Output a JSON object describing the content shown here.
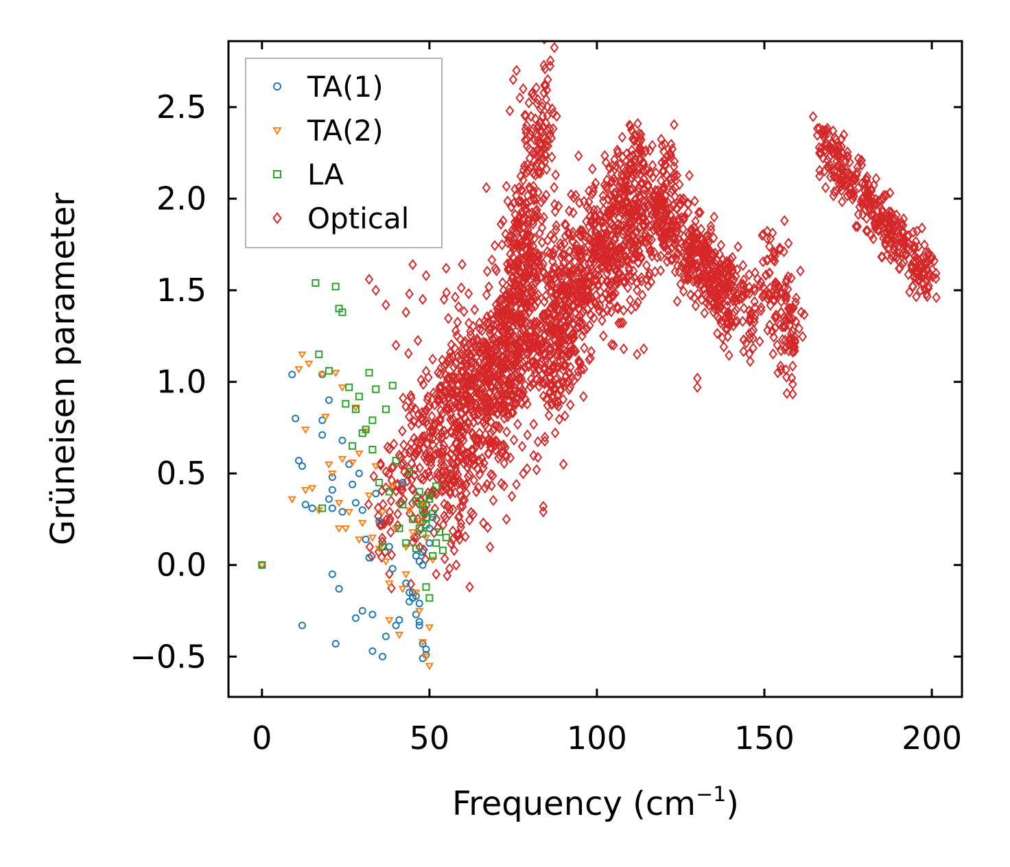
{
  "chart_data": {
    "type": "scatter",
    "title": "",
    "xlabel": "Frequency (cm",
    "xlabel_sup": "−1",
    "xlabel_end": ")",
    "ylabel": "Grüneisen parameter",
    "xlim": [
      -10,
      209
    ],
    "ylim": [
      -0.72,
      2.86
    ],
    "xticks": [
      0,
      50,
      100,
      150,
      200
    ],
    "xtick_labels": [
      "0",
      "50",
      "100",
      "150",
      "200"
    ],
    "yticks": [
      -0.5,
      0.0,
      0.5,
      1.0,
      1.5,
      2.0,
      2.5
    ],
    "ytick_labels": [
      "−0.5",
      "0.0",
      "0.5",
      "1.0",
      "1.5",
      "2.0",
      "2.5"
    ],
    "legend_position": "top-left",
    "series": [
      {
        "name": "TA(1)",
        "marker": "circle",
        "color": "#1f77b4",
        "x": [
          0,
          9,
          10,
          11,
          12,
          13,
          12,
          15,
          18,
          18,
          18,
          20,
          20,
          21,
          21,
          21,
          21,
          22,
          23,
          24,
          24,
          26,
          27,
          28,
          28,
          29,
          30,
          30,
          31,
          32,
          33,
          33,
          34,
          35,
          36,
          37,
          38,
          39,
          40,
          41,
          42,
          43,
          44,
          45,
          46,
          46,
          47,
          47,
          47,
          48,
          48,
          49,
          49,
          50,
          50,
          51,
          46,
          47,
          48,
          48,
          45,
          44
        ],
        "y": [
          0.0,
          1.04,
          0.8,
          0.57,
          0.54,
          0.33,
          -0.33,
          0.31,
          1.04,
          0.79,
          0.71,
          0.9,
          0.36,
          0.48,
          0.41,
          0.31,
          -0.05,
          -0.43,
          -0.13,
          0.29,
          0.68,
          0.55,
          0.44,
          0.34,
          -0.29,
          0.5,
          0.3,
          -0.25,
          0.14,
          0.04,
          -0.27,
          -0.47,
          0.39,
          0.24,
          -0.5,
          -0.39,
          0.1,
          -0.02,
          -0.33,
          -0.3,
          0.45,
          -0.1,
          -0.15,
          -0.18,
          -0.17,
          0.05,
          0.02,
          -0.21,
          -0.33,
          -0.43,
          -0.51,
          -0.49,
          -0.46,
          0.2,
          0.12,
          0.26,
          -0.27,
          -0.31,
          0.0,
          0.07,
          -0.15,
          -0.2
        ]
      },
      {
        "name": "TA(2)",
        "marker": "triangle-down",
        "color": "#ff7f0e",
        "x": [
          0,
          9,
          11,
          12,
          13,
          14,
          13,
          15,
          17,
          18,
          19,
          20,
          21,
          22,
          23,
          23,
          24,
          24,
          25,
          26,
          27,
          28,
          29,
          29,
          30,
          31,
          32,
          33,
          34,
          35,
          36,
          37,
          38,
          38,
          39,
          40,
          41,
          42,
          43,
          43,
          44,
          45,
          46,
          47,
          47,
          48,
          49,
          50,
          50,
          51,
          49,
          48
        ],
        "y": [
          0.0,
          0.36,
          1.07,
          1.15,
          0.74,
          1.1,
          0.41,
          0.42,
          0.3,
          1.04,
          0.81,
          0.55,
          0.5,
          1.05,
          0.34,
          0.2,
          0.58,
          0.97,
          0.2,
          0.29,
          0.56,
          0.86,
          0.61,
          0.14,
          0.23,
          0.73,
          0.38,
          0.15,
          0.54,
          0.09,
          0.29,
          0.02,
          -0.1,
          -0.3,
          0.43,
          0.2,
          -0.38,
          -0.13,
          -0.05,
          0.1,
          0.3,
          0.18,
          -0.15,
          0.24,
          -0.25,
          -0.42,
          -0.5,
          -0.55,
          -0.34,
          0.03,
          0.15,
          0.33
        ]
      },
      {
        "name": "LA",
        "marker": "square",
        "color": "#2ca02c",
        "x": [
          0,
          16,
          17,
          18,
          20,
          22,
          23,
          24,
          25,
          26,
          27,
          28,
          29,
          30,
          31,
          32,
          33,
          33,
          34,
          35,
          36,
          37,
          38,
          39,
          40,
          41,
          42,
          43,
          44,
          45,
          46,
          47,
          48,
          48,
          49,
          50,
          50,
          51,
          52,
          53,
          54,
          55,
          46,
          47,
          48,
          49,
          52,
          51,
          50,
          49
        ],
        "y": [
          0.0,
          1.54,
          1.15,
          0.31,
          1.06,
          1.52,
          1.4,
          1.38,
          0.88,
          0.97,
          0.65,
          0.85,
          0.92,
          0.72,
          0.74,
          1.05,
          0.63,
          0.79,
          0.96,
          0.45,
          0.1,
          0.85,
          0.4,
          0.98,
          0.57,
          0.2,
          0.33,
          0.12,
          0.51,
          0.25,
          0.09,
          0.4,
          0.17,
          0.33,
          -0.12,
          -0.18,
          0.36,
          0.28,
          0.43,
          0.18,
          0.08,
          0.15,
          0.35,
          0.2,
          0.3,
          0.26,
          0.12,
          0.05,
          0.38,
          0.22
        ]
      },
      {
        "name": "Optical",
        "marker": "diamond",
        "color": "#d62728",
        "clusters": [
          {
            "x_from": 35,
            "x_to": 62,
            "y_from": 0.2,
            "y_to": 1.2,
            "spread": 0.45,
            "count": 160
          },
          {
            "x_from": 45,
            "x_to": 75,
            "y_from": 0.5,
            "y_to": 1.35,
            "spread": 0.75,
            "count": 320
          },
          {
            "x_from": 55,
            "x_to": 82,
            "y_from": 0.45,
            "y_to": 1.6,
            "spread": 0.7,
            "count": 420
          },
          {
            "x_from": 68,
            "x_to": 95,
            "y_from": 0.8,
            "y_to": 1.75,
            "spread": 0.75,
            "count": 420
          },
          {
            "x_from": 75,
            "x_to": 85,
            "y_from": 1.5,
            "y_to": 2.6,
            "spread": 0.6,
            "count": 220
          },
          {
            "x_from": 85,
            "x_to": 100,
            "y_from": 1.0,
            "y_to": 1.65,
            "spread": 0.55,
            "count": 260
          },
          {
            "x_from": 98,
            "x_to": 114,
            "y_from": 1.7,
            "y_to": 2.2,
            "spread": 0.45,
            "count": 260
          },
          {
            "x_from": 102,
            "x_to": 124,
            "y_from": 1.55,
            "y_to": 2.1,
            "spread": 0.5,
            "count": 300
          },
          {
            "x_from": 118,
            "x_to": 140,
            "y_from": 1.95,
            "y_to": 1.45,
            "spread": 0.35,
            "count": 260
          },
          {
            "x_from": 128,
            "x_to": 148,
            "y_from": 1.7,
            "y_to": 1.35,
            "spread": 0.35,
            "count": 160
          },
          {
            "x_from": 150,
            "x_to": 160,
            "y_from": 1.6,
            "y_to": 1.2,
            "spread": 0.4,
            "count": 130
          },
          {
            "x_from": 167,
            "x_to": 200,
            "y_from": 2.3,
            "y_to": 1.55,
            "spread": 0.22,
            "count": 360
          }
        ],
        "outliers": {
          "x": [
            76,
            75,
            78,
            74,
            77,
            79,
            88,
            86,
            84,
            84,
            73,
            67,
            59,
            49,
            45,
            44,
            48,
            43,
            32,
            34,
            37,
            40,
            105,
            108,
            118,
            130,
            135,
            134,
            112,
            114,
            130,
            156,
            153,
            161,
            154,
            58,
            62,
            64,
            57,
            55,
            96,
            92,
            124,
            82,
            90,
            52,
            56,
            41
          ],
          "y": [
            2.7,
            2.65,
            2.6,
            2.48,
            2.55,
            2.4,
            2.45,
            2.35,
            0.32,
            0.29,
            0.25,
            2.06,
            0.14,
            1.58,
            1.64,
            1.48,
            1.45,
            1.38,
            1.56,
            1.5,
            1.42,
            1.2,
            1.2,
            1.18,
            1.9,
            0.97,
            1.9,
            1.85,
            1.15,
            1.18,
            1.02,
            1.88,
            1.7,
            1.38,
            1.05,
            0.0,
            -0.12,
            0.4,
            0.55,
            1.62,
            0.92,
            0.97,
            1.44,
            0.52,
            0.55,
            -0.05,
            -0.02,
            0.6
          ]
        }
      }
    ]
  }
}
